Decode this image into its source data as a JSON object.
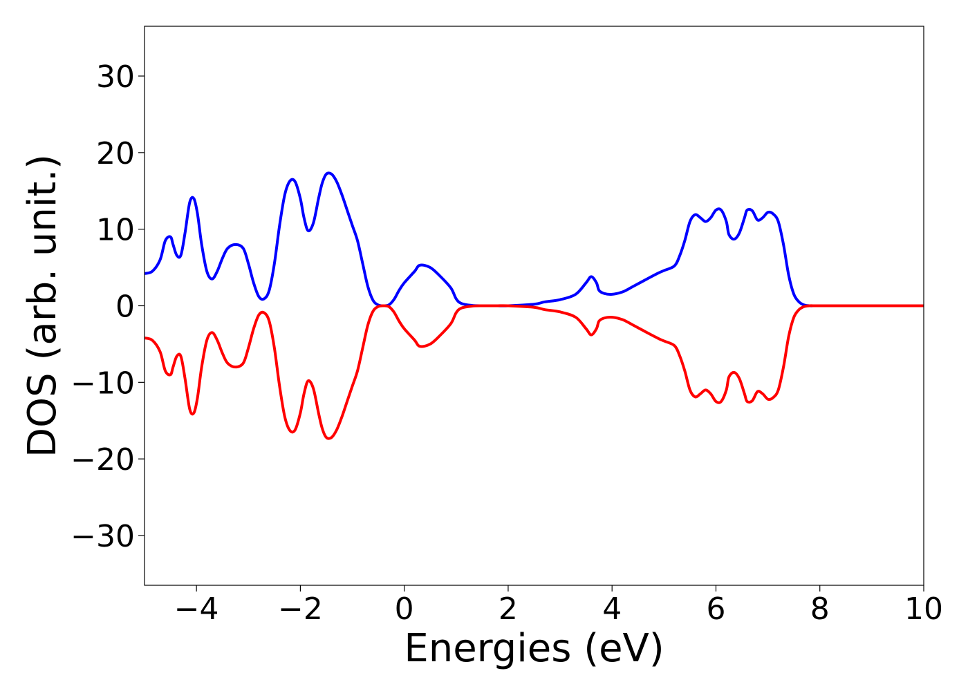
{
  "chart_data": {
    "type": "line",
    "title": "",
    "xlabel": "Energies (eV)",
    "ylabel": "DOS (arb. unit.)",
    "xlim": [
      -5,
      10
    ],
    "ylim": [
      -36.5,
      36.5
    ],
    "xticks": [
      -4,
      -2,
      0,
      2,
      4,
      6,
      8,
      10
    ],
    "xtick_labels": [
      "−4",
      "−2",
      "0",
      "2",
      "4",
      "6",
      "8",
      "10"
    ],
    "yticks": [
      30,
      20,
      10,
      0,
      -10,
      -20,
      -30
    ],
    "ytick_labels": [
      "30",
      "20",
      "10",
      "0",
      "−10",
      "−20",
      "−30"
    ],
    "grid": false,
    "legend": false,
    "series": [
      {
        "color": "#0000ff",
        "x": [
          -5.0,
          -4.85,
          -4.7,
          -4.6,
          -4.5,
          -4.45,
          -4.38,
          -4.3,
          -4.22,
          -4.13,
          -4.05,
          -3.98,
          -3.9,
          -3.8,
          -3.7,
          -3.6,
          -3.5,
          -3.4,
          -3.25,
          -3.1,
          -3.0,
          -2.9,
          -2.8,
          -2.7,
          -2.6,
          -2.5,
          -2.4,
          -2.3,
          -2.2,
          -2.1,
          -2.0,
          -1.93,
          -1.85,
          -1.75,
          -1.65,
          -1.58,
          -1.5,
          -1.4,
          -1.3,
          -1.2,
          -1.1,
          -1.0,
          -0.9,
          -0.8,
          -0.7,
          -0.6,
          -0.5,
          -0.4,
          -0.3,
          -0.2,
          -0.1,
          0.0,
          0.2,
          0.3,
          0.5,
          0.7,
          0.9,
          1.0,
          1.1,
          1.3,
          1.5,
          1.7,
          1.8,
          2.0,
          2.5,
          2.7,
          3.0,
          3.3,
          3.5,
          3.6,
          3.7,
          3.75,
          3.85,
          4.0,
          4.2,
          4.4,
          4.7,
          4.9,
          5.0,
          5.2,
          5.3,
          5.4,
          5.5,
          5.6,
          5.7,
          5.8,
          5.9,
          6.0,
          6.1,
          6.2,
          6.25,
          6.35,
          6.45,
          6.55,
          6.6,
          6.7,
          6.8,
          6.9,
          7.0,
          7.1,
          7.2,
          7.3,
          7.4,
          7.5,
          7.6,
          7.7,
          7.8,
          7.9,
          8.0,
          8.2,
          8.5,
          9.0,
          9.5,
          10.0
        ],
        "y": [
          4.2,
          4.5,
          6.0,
          8.5,
          9.0,
          8.0,
          6.6,
          6.6,
          9.5,
          13.5,
          14.0,
          12.0,
          8.0,
          4.5,
          3.5,
          4.5,
          6.2,
          7.5,
          8.0,
          7.5,
          5.5,
          3.0,
          1.2,
          0.9,
          2.0,
          5.5,
          10.5,
          14.5,
          16.3,
          16.2,
          14.0,
          11.5,
          9.8,
          10.8,
          14.0,
          16.0,
          17.2,
          17.2,
          16.2,
          14.5,
          12.5,
          10.5,
          8.5,
          5.5,
          2.5,
          0.7,
          0.1,
          0.0,
          0.1,
          0.8,
          2.0,
          3.0,
          4.5,
          5.3,
          5.0,
          3.8,
          2.3,
          0.9,
          0.3,
          0.05,
          0.0,
          0.0,
          0.0,
          0.0,
          0.2,
          0.5,
          0.8,
          1.5,
          3.0,
          3.8,
          3.0,
          2.0,
          1.6,
          1.5,
          1.8,
          2.5,
          3.6,
          4.3,
          4.6,
          5.2,
          6.5,
          8.5,
          11.0,
          11.9,
          11.5,
          11.0,
          11.5,
          12.5,
          12.5,
          11.0,
          9.3,
          8.7,
          9.5,
          11.5,
          12.5,
          12.4,
          11.2,
          11.5,
          12.2,
          12.0,
          11.0,
          8.0,
          4.0,
          1.5,
          0.5,
          0.1,
          0.0,
          0.0,
          0.0,
          0.0,
          0.0,
          0.0,
          0.0,
          0.0
        ]
      },
      {
        "color": "#ff0000",
        "x": [
          -5.0,
          -4.85,
          -4.7,
          -4.6,
          -4.5,
          -4.45,
          -4.38,
          -4.3,
          -4.22,
          -4.13,
          -4.05,
          -3.98,
          -3.9,
          -3.8,
          -3.7,
          -3.6,
          -3.5,
          -3.4,
          -3.25,
          -3.1,
          -3.0,
          -2.9,
          -2.8,
          -2.7,
          -2.6,
          -2.5,
          -2.4,
          -2.3,
          -2.2,
          -2.1,
          -2.0,
          -1.93,
          -1.85,
          -1.75,
          -1.65,
          -1.58,
          -1.5,
          -1.4,
          -1.3,
          -1.2,
          -1.1,
          -1.0,
          -0.9,
          -0.8,
          -0.7,
          -0.6,
          -0.5,
          -0.4,
          -0.3,
          -0.2,
          -0.1,
          0.0,
          0.2,
          0.3,
          0.5,
          0.7,
          0.9,
          1.0,
          1.1,
          1.3,
          1.5,
          1.7,
          1.8,
          2.0,
          2.5,
          2.7,
          3.0,
          3.3,
          3.5,
          3.6,
          3.7,
          3.75,
          3.85,
          4.0,
          4.2,
          4.4,
          4.7,
          4.9,
          5.0,
          5.2,
          5.3,
          5.4,
          5.5,
          5.6,
          5.7,
          5.8,
          5.9,
          6.0,
          6.1,
          6.2,
          6.25,
          6.35,
          6.45,
          6.55,
          6.6,
          6.7,
          6.8,
          6.9,
          7.0,
          7.1,
          7.2,
          7.3,
          7.4,
          7.5,
          7.6,
          7.7,
          7.8,
          7.9,
          8.0,
          8.2,
          8.5,
          9.0,
          9.5,
          10.0
        ],
        "y": [
          -4.2,
          -4.5,
          -6.0,
          -8.5,
          -9.0,
          -8.0,
          -6.6,
          -6.6,
          -9.5,
          -13.5,
          -14.0,
          -12.0,
          -8.0,
          -4.5,
          -3.5,
          -4.5,
          -6.2,
          -7.5,
          -8.0,
          -7.5,
          -5.5,
          -3.0,
          -1.2,
          -0.9,
          -2.0,
          -5.5,
          -10.5,
          -14.5,
          -16.3,
          -16.2,
          -14.0,
          -11.5,
          -9.8,
          -10.8,
          -14.0,
          -16.0,
          -17.2,
          -17.2,
          -16.2,
          -14.5,
          -12.5,
          -10.5,
          -8.5,
          -5.5,
          -2.5,
          -0.7,
          -0.1,
          0.0,
          -0.1,
          -0.8,
          -2.0,
          -3.0,
          -4.5,
          -5.3,
          -5.0,
          -3.8,
          -2.3,
          -0.9,
          -0.3,
          -0.05,
          0.0,
          0.0,
          0.0,
          0.0,
          -0.2,
          -0.5,
          -0.8,
          -1.5,
          -3.0,
          -3.8,
          -3.0,
          -2.0,
          -1.6,
          -1.5,
          -1.8,
          -2.5,
          -3.6,
          -4.3,
          -4.6,
          -5.2,
          -6.5,
          -8.5,
          -11.0,
          -11.9,
          -11.5,
          -11.0,
          -11.5,
          -12.5,
          -12.5,
          -11.0,
          -9.3,
          -8.7,
          -9.5,
          -11.5,
          -12.5,
          -12.4,
          -11.2,
          -11.5,
          -12.2,
          -12.0,
          -11.0,
          -8.0,
          -4.0,
          -1.5,
          -0.5,
          -0.1,
          0.0,
          0.0,
          0.0,
          0.0,
          0.0,
          0.0,
          0.0,
          0.0
        ]
      }
    ]
  }
}
